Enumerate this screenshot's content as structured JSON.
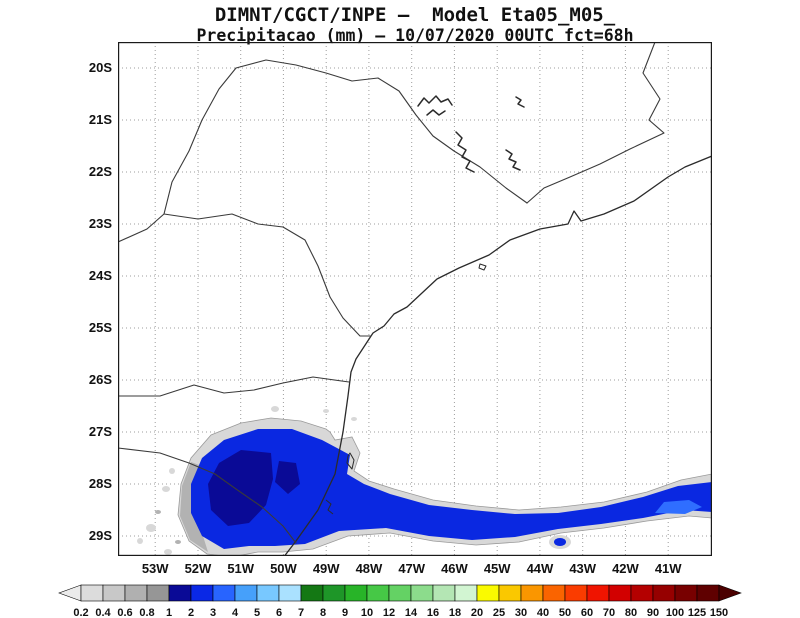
{
  "title": {
    "line1": "DIMNT/CGCT/INPE —  Model Eta05_M05_",
    "line2": "Precipitacao (mm) — 10/07/2020 00UTC fct=68h"
  },
  "map": {
    "lat_ticks": [
      "20S",
      "21S",
      "22S",
      "23S",
      "24S",
      "25S",
      "26S",
      "27S",
      "28S",
      "29S"
    ],
    "lon_ticks": [
      "53W",
      "52W",
      "51W",
      "50W",
      "49W",
      "48W",
      "47W",
      "46W",
      "45W",
      "44W",
      "43W",
      "42W",
      "41W"
    ]
  },
  "colorbar": {
    "labels": [
      "0.2",
      "0.4",
      "0.6",
      "0.8",
      "1",
      "2",
      "3",
      "4",
      "5",
      "6",
      "7",
      "8",
      "9",
      "10",
      "12",
      "14",
      "16",
      "18",
      "20",
      "25",
      "30",
      "40",
      "50",
      "60",
      "70",
      "80",
      "90",
      "100",
      "125",
      "150"
    ],
    "arrow_left_color": "#ebebeb",
    "arrow_right_color": "#4b0000",
    "segment_colors": [
      "#dcdcdc",
      "#c8c8c8",
      "#b0b0b0",
      "#969696",
      "#0a0a96",
      "#0a28e6",
      "#2864ff",
      "#46a0fa",
      "#78c8ff",
      "#aae1ff",
      "#147814",
      "#1e9628",
      "#28b428",
      "#46c846",
      "#64d264",
      "#8cdc8c",
      "#b4e6b4",
      "#d2f5d2",
      "#fafa00",
      "#fac800",
      "#fa9600",
      "#fa6400",
      "#fa3c00",
      "#f01400",
      "#d20000",
      "#b40000",
      "#960000",
      "#780000",
      "#5f0000"
    ]
  },
  "palette": {
    "gray_light": "#d8d8d8",
    "gray_mid": "#b2b2b2",
    "blue_dark": "#0a0a96",
    "blue_main": "#0a28e1",
    "blue_light": "#2f6eff",
    "blue_lighter": "#5aa8fa"
  }
}
